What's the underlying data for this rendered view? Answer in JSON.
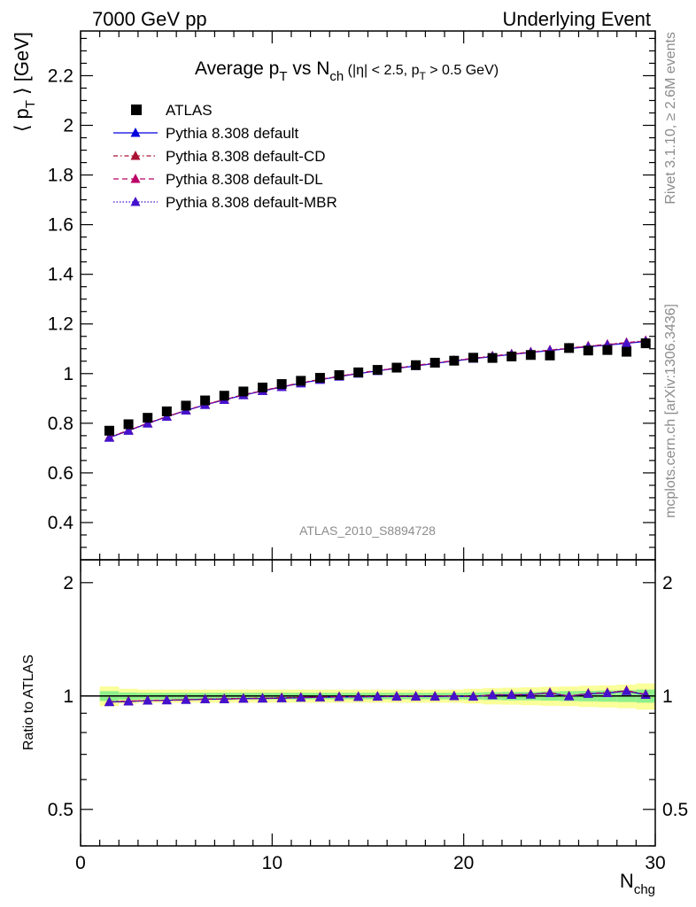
{
  "header": {
    "left": "7000 GeV pp",
    "right": "Underlying Event"
  },
  "side": {
    "rivet": "Rivet 3.1.10, ≥ 2.6M events",
    "mcplots": "mcplots.cern.ch [arXiv:1306.3436]"
  },
  "chart_data": {
    "type": "scatter",
    "title": {
      "main": "Average p",
      "main_sub": "T",
      "vs": " vs N",
      "vs_sub": "ch",
      "cut1": " (|η| < 2.5, p",
      "cut1_sub": "T",
      "cut2": " > 0.5 GeV)"
    },
    "analysis_label": "ATLAS_2010_S8894728",
    "ylabel": {
      "pre": "⟨ p",
      "sub": "T",
      "post": " ⟩ [GeV]"
    },
    "xlabel": {
      "main": "N",
      "sub": "chg"
    },
    "ratio_ylabel": "Ratio to ATLAS",
    "xlim": [
      0,
      30
    ],
    "ylim": [
      0.25,
      2.38
    ],
    "ratio_ylim": [
      0.4,
      2.3
    ],
    "ratio_log_scale": true,
    "x_ticks": [
      "0",
      "10",
      "20",
      "30"
    ],
    "y_ticks": [
      "0.4",
      "0.6",
      "0.8",
      "1",
      "1.2",
      "1.4",
      "1.6",
      "1.8",
      "2",
      "2.2"
    ],
    "ratio_ticks": [
      "0.5",
      "1",
      "2"
    ],
    "legend": [
      {
        "label": "ATLAS",
        "style": "square",
        "color": "#000000",
        "dash": ""
      },
      {
        "label": "Pythia 8.308 default",
        "style": "tri",
        "color": "#0000dd",
        "dash": ""
      },
      {
        "label": "Pythia 8.308 default-CD",
        "style": "tri",
        "color": "#aa1133",
        "dash": "5,3,1.5,3"
      },
      {
        "label": "Pythia 8.308 default-DL",
        "style": "tri",
        "color": "#bb0066",
        "dash": "6,4"
      },
      {
        "label": "Pythia 8.308 default-MBR",
        "style": "tri",
        "color": "#4411cc",
        "dash": "1.5,2"
      }
    ],
    "x": [
      1.5,
      2.5,
      3.5,
      4.5,
      5.5,
      6.5,
      7.5,
      8.5,
      9.5,
      10.5,
      11.5,
      12.5,
      13.5,
      14.5,
      15.5,
      16.5,
      17.5,
      18.5,
      19.5,
      20.5,
      21.5,
      22.5,
      23.5,
      24.5,
      25.5,
      26.5,
      27.5,
      28.5,
      29.5
    ],
    "atlas": [
      0.77,
      0.796,
      0.822,
      0.848,
      0.871,
      0.892,
      0.911,
      0.928,
      0.944,
      0.958,
      0.971,
      0.983,
      0.994,
      1.005,
      1.015,
      1.024,
      1.034,
      1.044,
      1.052,
      1.064,
      1.063,
      1.069,
      1.075,
      1.073,
      1.103,
      1.093,
      1.095,
      1.088,
      1.122
    ],
    "series": [
      {
        "name": "Pythia 8.308 default",
        "values": [
          0.742,
          0.77,
          0.799,
          0.826,
          0.851,
          0.874,
          0.894,
          0.913,
          0.93,
          0.946,
          0.961,
          0.975,
          0.988,
          1.0,
          1.011,
          1.021,
          1.031,
          1.041,
          1.051,
          1.06,
          1.069,
          1.077,
          1.085,
          1.093,
          1.101,
          1.108,
          1.115,
          1.122,
          1.13
        ],
        "ratio": [
          0.964,
          0.967,
          0.972,
          0.974,
          0.977,
          0.98,
          0.981,
          0.984,
          0.985,
          0.987,
          0.99,
          0.992,
          0.994,
          0.995,
          0.996,
          0.997,
          0.997,
          0.997,
          0.999,
          0.996,
          1.006,
          1.007,
          1.009,
          1.019,
          0.998,
          1.014,
          1.018,
          1.031,
          1.007
        ]
      },
      {
        "name": "Pythia 8.308 default-CD",
        "values": [
          0.744,
          0.772,
          0.8,
          0.827,
          0.852,
          0.875,
          0.896,
          0.915,
          0.932,
          0.948,
          0.963,
          0.977,
          0.99,
          1.002,
          1.013,
          1.023,
          1.033,
          1.043,
          1.053,
          1.062,
          1.071,
          1.079,
          1.087,
          1.095,
          1.103,
          1.111,
          1.118,
          1.125,
          1.133
        ],
        "ratio": [
          0.966,
          0.97,
          0.973,
          0.975,
          0.978,
          0.981,
          0.984,
          0.986,
          0.987,
          0.99,
          0.992,
          0.994,
          0.996,
          0.997,
          0.998,
          0.999,
          0.999,
          0.999,
          1.001,
          0.998,
          1.008,
          1.009,
          1.011,
          1.021,
          1.0,
          1.016,
          1.021,
          1.034,
          1.01
        ]
      },
      {
        "name": "Pythia 8.308 default-DL",
        "values": [
          0.743,
          0.771,
          0.8,
          0.827,
          0.852,
          0.875,
          0.895,
          0.914,
          0.931,
          0.947,
          0.962,
          0.976,
          0.989,
          1.001,
          1.012,
          1.022,
          1.032,
          1.042,
          1.052,
          1.061,
          1.07,
          1.078,
          1.086,
          1.094,
          1.102,
          1.11,
          1.117,
          1.124,
          1.132
        ],
        "ratio": [
          0.965,
          0.969,
          0.973,
          0.975,
          0.978,
          0.981,
          0.982,
          0.985,
          0.986,
          0.988,
          0.991,
          0.993,
          0.995,
          0.996,
          0.997,
          0.998,
          0.998,
          0.998,
          1.0,
          0.997,
          1.007,
          1.008,
          1.01,
          1.02,
          0.999,
          1.016,
          1.02,
          1.033,
          1.009
        ]
      },
      {
        "name": "Pythia 8.308 default-MBR",
        "values": [
          0.742,
          0.77,
          0.799,
          0.826,
          0.851,
          0.874,
          0.894,
          0.913,
          0.93,
          0.946,
          0.961,
          0.975,
          0.988,
          1.0,
          1.011,
          1.021,
          1.031,
          1.041,
          1.051,
          1.06,
          1.069,
          1.077,
          1.085,
          1.093,
          1.101,
          1.108,
          1.115,
          1.122,
          1.13
        ],
        "ratio": [
          0.964,
          0.967,
          0.972,
          0.974,
          0.977,
          0.98,
          0.981,
          0.984,
          0.985,
          0.987,
          0.99,
          0.992,
          0.994,
          0.995,
          0.996,
          0.997,
          0.997,
          0.997,
          0.999,
          0.996,
          1.006,
          1.007,
          1.009,
          1.019,
          0.998,
          1.014,
          1.018,
          1.031,
          1.007
        ]
      }
    ],
    "ratio_bands": {
      "x_edges": [
        1,
        2,
        3,
        4,
        5,
        6,
        7,
        8,
        9,
        10,
        11,
        12,
        13,
        14,
        15,
        16,
        17,
        18,
        19,
        20,
        21,
        22,
        23,
        24,
        25,
        26,
        27,
        28,
        29,
        30
      ],
      "green": [
        0.03,
        0.022,
        0.02,
        0.02,
        0.02,
        0.02,
        0.02,
        0.02,
        0.02,
        0.02,
        0.02,
        0.02,
        0.02,
        0.02,
        0.02,
        0.02,
        0.02,
        0.02,
        0.02,
        0.022,
        0.024,
        0.026,
        0.026,
        0.028,
        0.03,
        0.032,
        0.034,
        0.036,
        0.04
      ],
      "yellow": [
        0.06,
        0.045,
        0.04,
        0.04,
        0.04,
        0.04,
        0.04,
        0.04,
        0.04,
        0.04,
        0.04,
        0.04,
        0.04,
        0.04,
        0.04,
        0.04,
        0.04,
        0.04,
        0.04,
        0.045,
        0.05,
        0.052,
        0.055,
        0.058,
        0.06,
        0.065,
        0.068,
        0.072,
        0.08
      ]
    },
    "colors": {
      "green": "#8ef08a",
      "yellow": "#faff99",
      "data": "#000000"
    }
  }
}
